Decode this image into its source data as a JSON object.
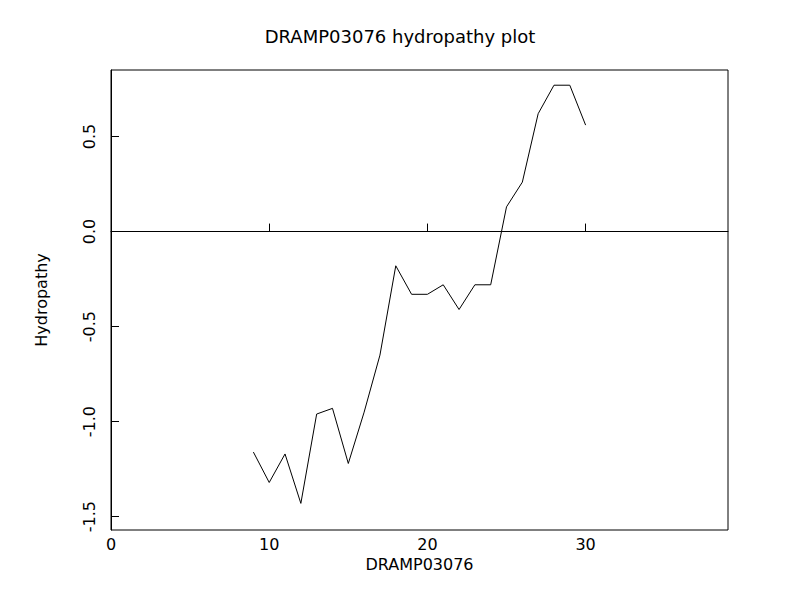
{
  "chart_data": {
    "type": "line",
    "title": "DRAMP03076 hydropathy plot",
    "x_label": "DRAMP03076",
    "y_label": "Hydropathy",
    "x": [
      9,
      10,
      11,
      12,
      13,
      14,
      15,
      16,
      17,
      18,
      19,
      20,
      21,
      22,
      23,
      24,
      25,
      26,
      27,
      28,
      29,
      30
    ],
    "values": [
      -1.16,
      -1.32,
      -1.17,
      -1.43,
      -0.96,
      -0.93,
      -1.22,
      -0.95,
      -0.65,
      -0.18,
      -0.33,
      -0.33,
      -0.28,
      -0.41,
      -0.28,
      -0.28,
      0.13,
      0.26,
      0.62,
      0.77,
      0.77,
      0.56
    ],
    "color": "#000000",
    "xlim": [
      0,
      39
    ],
    "xticks": [
      0,
      10,
      20,
      30
    ],
    "ylim": [
      -1.57,
      0.85
    ],
    "yticks": [
      -1.5,
      {
        "value": -1,
        "label": "-1.0"
      },
      -0.5,
      {
        "value": 0,
        "label": "0.0"
      },
      0.5
    ],
    "grid": false
  }
}
